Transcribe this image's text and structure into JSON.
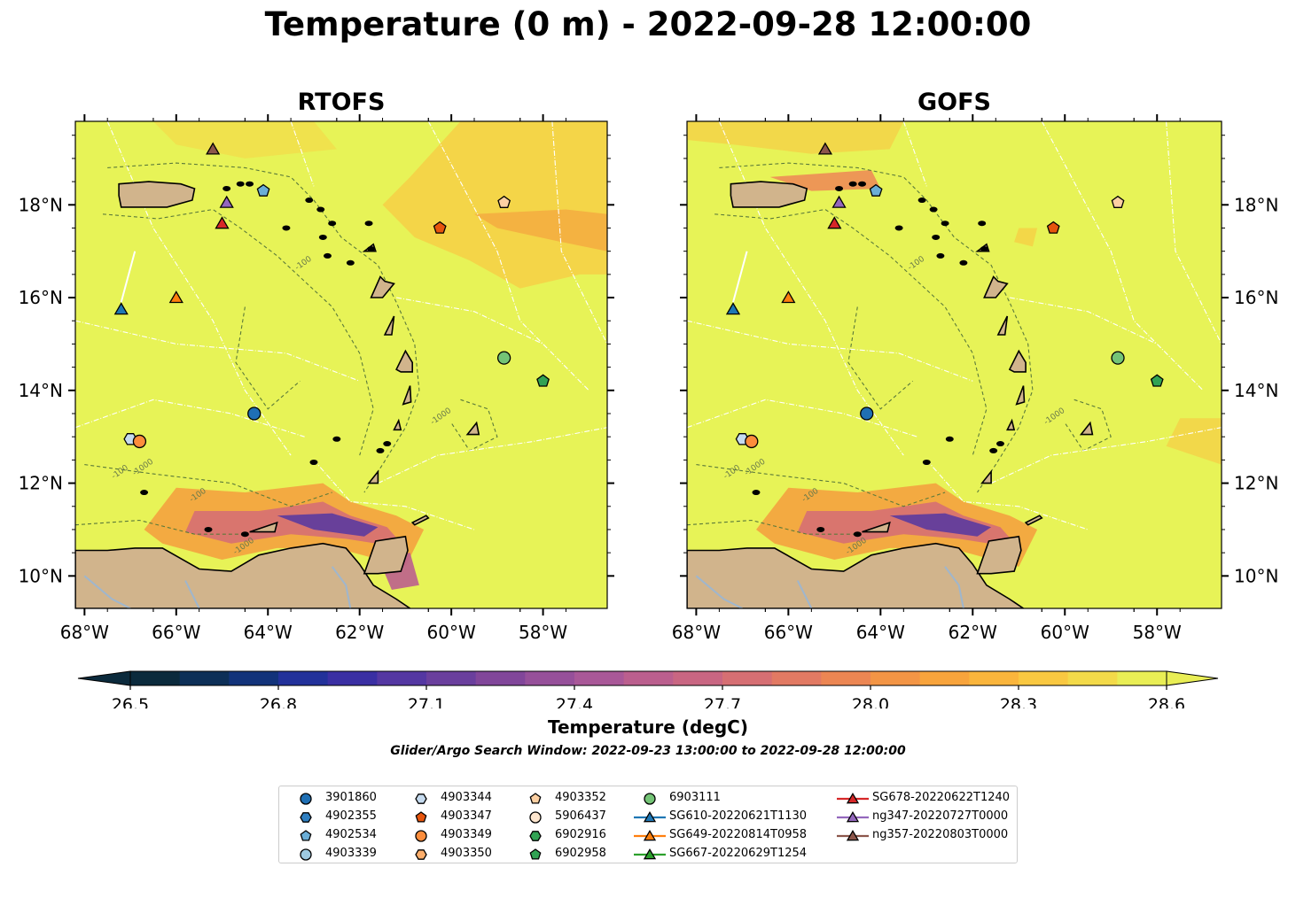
{
  "title": "Temperature (0 m) - 2022-09-28 12:00:00",
  "panels": [
    {
      "id": "rtofs",
      "title": "RTOFS"
    },
    {
      "id": "gofs",
      "title": "GOFS"
    }
  ],
  "axes": {
    "lon_ticks": [
      "68°W",
      "66°W",
      "64°W",
      "62°W",
      "60°W",
      "58°W"
    ],
    "lon_values": [
      -68,
      -66,
      -64,
      -62,
      -60,
      -58
    ],
    "lat_ticks": [
      "10°N",
      "12°N",
      "14°N",
      "16°N",
      "18°N"
    ],
    "lat_values": [
      10,
      12,
      14,
      16,
      18
    ],
    "lon_range": [
      -68.2,
      -56.6
    ],
    "lat_range": [
      9.3,
      19.8
    ]
  },
  "contour_labels": [
    "-100",
    "-1000"
  ],
  "colorbar": {
    "label": "Temperature (degC)",
    "ticks": [
      "26.5",
      "26.8",
      "27.1",
      "27.4",
      "27.7",
      "28.0",
      "28.3",
      "28.6"
    ],
    "tick_values": [
      26.5,
      26.8,
      27.1,
      27.4,
      27.7,
      28.0,
      28.3,
      28.6
    ],
    "range": [
      26.5,
      28.6
    ],
    "colors": [
      "#0b2a3c",
      "#0d2f57",
      "#12337a",
      "#22319a",
      "#3a2fa3",
      "#5437a2",
      "#6a3f9d",
      "#81469a",
      "#96509a",
      "#a95898",
      "#bb5f8e",
      "#c96682",
      "#d66f73",
      "#e27a63",
      "#ec8653",
      "#f39545",
      "#f8a43c",
      "#fab53c",
      "#f9c841",
      "#f3da49",
      "#e9ee55"
    ],
    "extend": "both"
  },
  "search_window": "Glider/Argo Search Window: 2022-09-23 13:00:00 to 2022-09-28 12:00:00",
  "legend": [
    {
      "label": "3901860",
      "marker": "circle",
      "color": "#1f6fb4"
    },
    {
      "label": "4902355",
      "marker": "hexagon",
      "color": "#2f7fc1"
    },
    {
      "label": "4902534",
      "marker": "pentagon",
      "color": "#6baed6"
    },
    {
      "label": "4903339",
      "marker": "circle",
      "color": "#9ecae1"
    },
    {
      "label": "4903344",
      "marker": "hexagon",
      "color": "#c6dbef"
    },
    {
      "label": "4903347",
      "marker": "pentagon",
      "color": "#e6550d"
    },
    {
      "label": "4903349",
      "marker": "circle",
      "color": "#fd8d3c"
    },
    {
      "label": "4903350",
      "marker": "hexagon",
      "color": "#fdae6b"
    },
    {
      "label": "4903352",
      "marker": "pentagon",
      "color": "#fdd0a2"
    },
    {
      "label": "5906437",
      "marker": "circle",
      "color": "#fee6ce"
    },
    {
      "label": "6902916",
      "marker": "hexagon",
      "color": "#31a354"
    },
    {
      "label": "6902958",
      "marker": "pentagon",
      "color": "#31a354"
    },
    {
      "label": "6903111",
      "marker": "circle",
      "color": "#74c476"
    },
    {
      "label": "SG610-20220621T1130",
      "marker": "triangle",
      "color": "#1f77b4",
      "line": true
    },
    {
      "label": "SG649-20220814T0958",
      "marker": "triangle",
      "color": "#ff7f0e",
      "line": true
    },
    {
      "label": "SG667-20220629T1254",
      "marker": "triangle",
      "color": "#2ca02c",
      "line": true
    },
    {
      "label": "SG678-20220622T1240",
      "marker": "triangle",
      "color": "#d62728",
      "line": true
    },
    {
      "label": "ng347-20220727T0000",
      "marker": "triangle",
      "color": "#9467bd",
      "line": true
    },
    {
      "label": "ng357-20220803T0000",
      "marker": "triangle",
      "color": "#8c564b",
      "line": true
    }
  ],
  "markers": [
    {
      "id": "3901860",
      "lon": -64.3,
      "lat": 13.5,
      "marker": "circle",
      "color": "#1f6fb4"
    },
    {
      "id": "4902534",
      "lon": -64.1,
      "lat": 18.3,
      "marker": "pentagon",
      "color": "#6baed6"
    },
    {
      "id": "4903344",
      "lon": -67.0,
      "lat": 12.95,
      "marker": "hexagon",
      "color": "#c6dbef"
    },
    {
      "id": "4903349",
      "lon": -66.8,
      "lat": 12.9,
      "marker": "circle",
      "color": "#fd8d3c"
    },
    {
      "id": "4903347",
      "lon": -60.25,
      "lat": 17.5,
      "marker": "pentagon",
      "color": "#e6550d"
    },
    {
      "id": "4903352",
      "lon": -58.85,
      "lat": 18.05,
      "marker": "pentagon",
      "color": "#fdd0a2"
    },
    {
      "id": "6903111",
      "lon": -58.85,
      "lat": 14.7,
      "marker": "circle",
      "color": "#74c476"
    },
    {
      "id": "6902958",
      "lon": -58.0,
      "lat": 14.2,
      "marker": "pentagon",
      "color": "#31a354"
    },
    {
      "id": "SG610",
      "lon": -67.2,
      "lat": 15.75,
      "marker": "triangle",
      "color": "#1f77b4"
    },
    {
      "id": "SG649",
      "lon": -66.0,
      "lat": 16.0,
      "marker": "triangle",
      "color": "#ff7f0e"
    },
    {
      "id": "SG678",
      "lon": -65.0,
      "lat": 17.6,
      "marker": "triangle",
      "color": "#d62728"
    },
    {
      "id": "ng347",
      "lon": -64.9,
      "lat": 18.05,
      "marker": "triangle",
      "color": "#9467bd"
    },
    {
      "id": "ng357",
      "lon": -65.2,
      "lat": 19.2,
      "marker": "triangle",
      "color": "#8c564b"
    }
  ]
}
